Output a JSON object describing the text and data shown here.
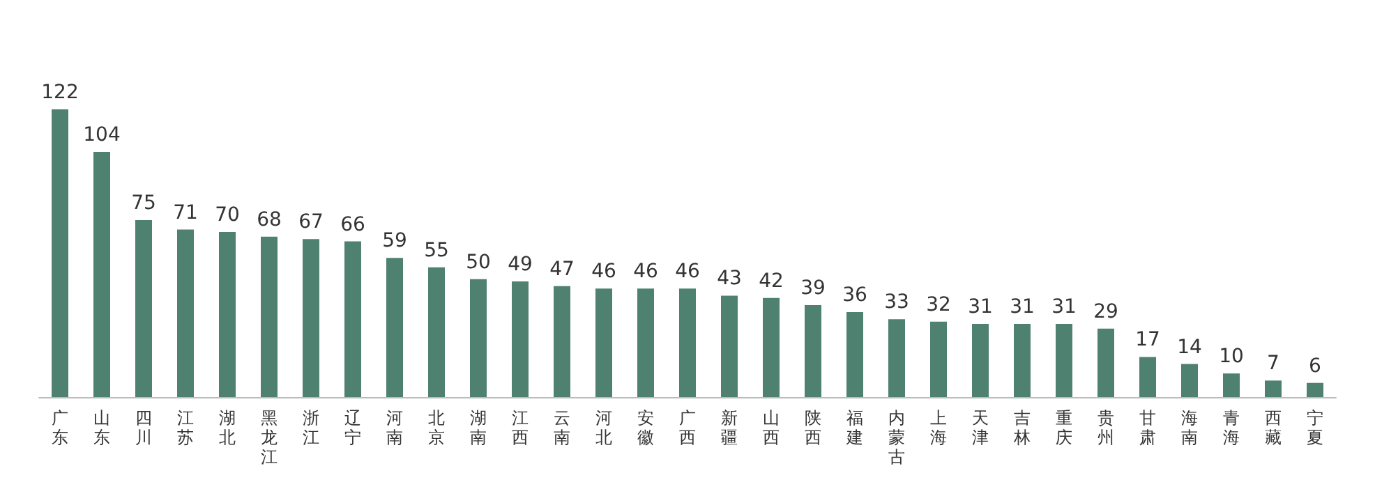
{
  "chart_data": {
    "type": "bar",
    "categories": [
      "广东",
      "山东",
      "四川",
      "江苏",
      "湖北",
      "黑龙江",
      "浙江",
      "辽宁",
      "河南",
      "北京",
      "湖南",
      "江西",
      "云南",
      "河北",
      "安徽",
      "广西",
      "新疆",
      "山西",
      "陕西",
      "福建",
      "内蒙古",
      "上海",
      "天津",
      "吉林",
      "重庆",
      "贵州",
      "甘肃",
      "海南",
      "青海",
      "西藏",
      "宁夏"
    ],
    "values": [
      122,
      104,
      75,
      71,
      70,
      68,
      67,
      66,
      59,
      55,
      50,
      49,
      47,
      46,
      46,
      46,
      43,
      42,
      39,
      36,
      33,
      32,
      31,
      31,
      31,
      29,
      17,
      14,
      10,
      7,
      6
    ],
    "color": "#4f8170",
    "data_labels": true
  }
}
